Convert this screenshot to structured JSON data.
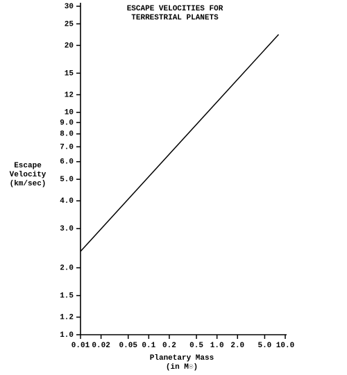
{
  "chart_data": {
    "type": "line",
    "title": [
      "ESCAPE VELOCITIES FOR",
      "TERRESTRIAL PLANETS"
    ],
    "ylabel": [
      "Escape",
      "Velocity",
      "(km/sec)"
    ],
    "xlabel": [
      "Planetary Mass",
      "(in M☉)"
    ],
    "x": [
      0.01,
      8
    ],
    "values": [
      2.37,
      22.4
    ],
    "color": "#000000",
    "xlog": true,
    "ylog": true,
    "xlim": [
      0.01,
      10
    ],
    "ylim": [
      1,
      30
    ],
    "xticks": [
      0.01,
      0.02,
      0.05,
      0.1,
      0.2,
      0.5,
      {
        "value": 1,
        "label": "1.0"
      },
      {
        "value": 2,
        "label": "2.0"
      },
      {
        "value": 5,
        "label": "5.0"
      },
      {
        "value": 10,
        "label": "10.0"
      }
    ],
    "yticks": [
      {
        "value": 1,
        "label": "1.0"
      },
      {
        "value": 1.2,
        "label": "1.2"
      },
      {
        "value": 1.5,
        "label": "1.5"
      },
      {
        "value": 2,
        "label": "2.0"
      },
      {
        "value": 3,
        "label": "3.0"
      },
      {
        "value": 4,
        "label": "4.0"
      },
      {
        "value": 5,
        "label": "5.0"
      },
      {
        "value": 6,
        "label": "6.0"
      },
      {
        "value": 7,
        "label": "7.0"
      },
      {
        "value": 8,
        "label": "8.0"
      },
      {
        "value": 9,
        "label": "9.0"
      },
      10,
      12,
      15,
      20,
      25,
      30
    ]
  }
}
